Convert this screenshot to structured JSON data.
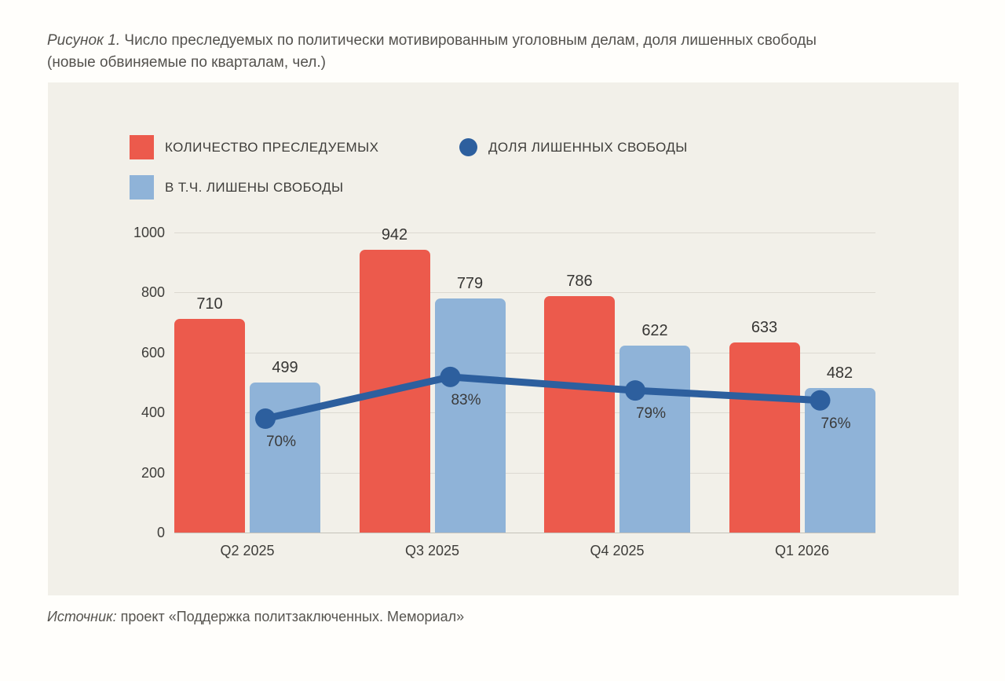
{
  "figure": {
    "title_prefix": "Рисунок 1.",
    "title_main": " Число преследуемых по политически мотивированным уголовным делам, доля лишенных свободы",
    "title_line2": "(новые обвиняемые по кварталам, чел.)",
    "source_prefix": "Источник:",
    "source_main": " проект «Поддержка политзаключенных. Мемориал»"
  },
  "legend": {
    "items": [
      {
        "label": "КОЛИЧЕСТВО ПРЕСЛЕДУЕМЫХ",
        "swatch": "square",
        "color": "#ec5a4c"
      },
      {
        "label": "ДОЛЯ ЛИШЕННЫХ СВОБОДЫ",
        "swatch": "circle",
        "color": "#2d5f9e"
      },
      {
        "label": "В Т.Ч. ЛИШЕНЫ СВОБОДЫ",
        "swatch": "square",
        "color": "#8fb3d8"
      }
    ]
  },
  "chart_data": {
    "type": "bar",
    "categories": [
      "Q2 2025",
      "Q3 2025",
      "Q4 2025",
      "Q1 2026"
    ],
    "series": [
      {
        "name": "КОЛИЧЕСТВО ПРЕСЛЕДУЕМЫХ",
        "type": "bar",
        "color": "#ec5a4c",
        "values": [
          710,
          942,
          786,
          633
        ]
      },
      {
        "name": "В Т.Ч. ЛИШЕНЫ СВОБОДЫ",
        "type": "bar",
        "color": "#8fb3d8",
        "values": [
          499,
          779,
          622,
          482
        ]
      },
      {
        "name": "ДОЛЯ ЛИШЕННЫХ СВОБОДЫ",
        "type": "line",
        "color": "#2d5f9e",
        "values_percent": [
          70,
          83,
          79,
          76
        ],
        "point_labels": [
          "70%",
          "83%",
          "79%",
          "76%"
        ],
        "point_positions_on_primary_axis": [
          379,
          518,
          473,
          440
        ]
      }
    ],
    "yticks": [
      0,
      200,
      400,
      600,
      800,
      1000
    ],
    "ylim": [
      0,
      1000
    ],
    "grid": true,
    "legend_position": "top-left",
    "colors": {
      "panel_background": "#f2f0e9",
      "page_background": "#fffefb",
      "gridline": "#dcd9d1",
      "axis_line": "#c5c2ba",
      "text": "#3e3d3a"
    }
  }
}
